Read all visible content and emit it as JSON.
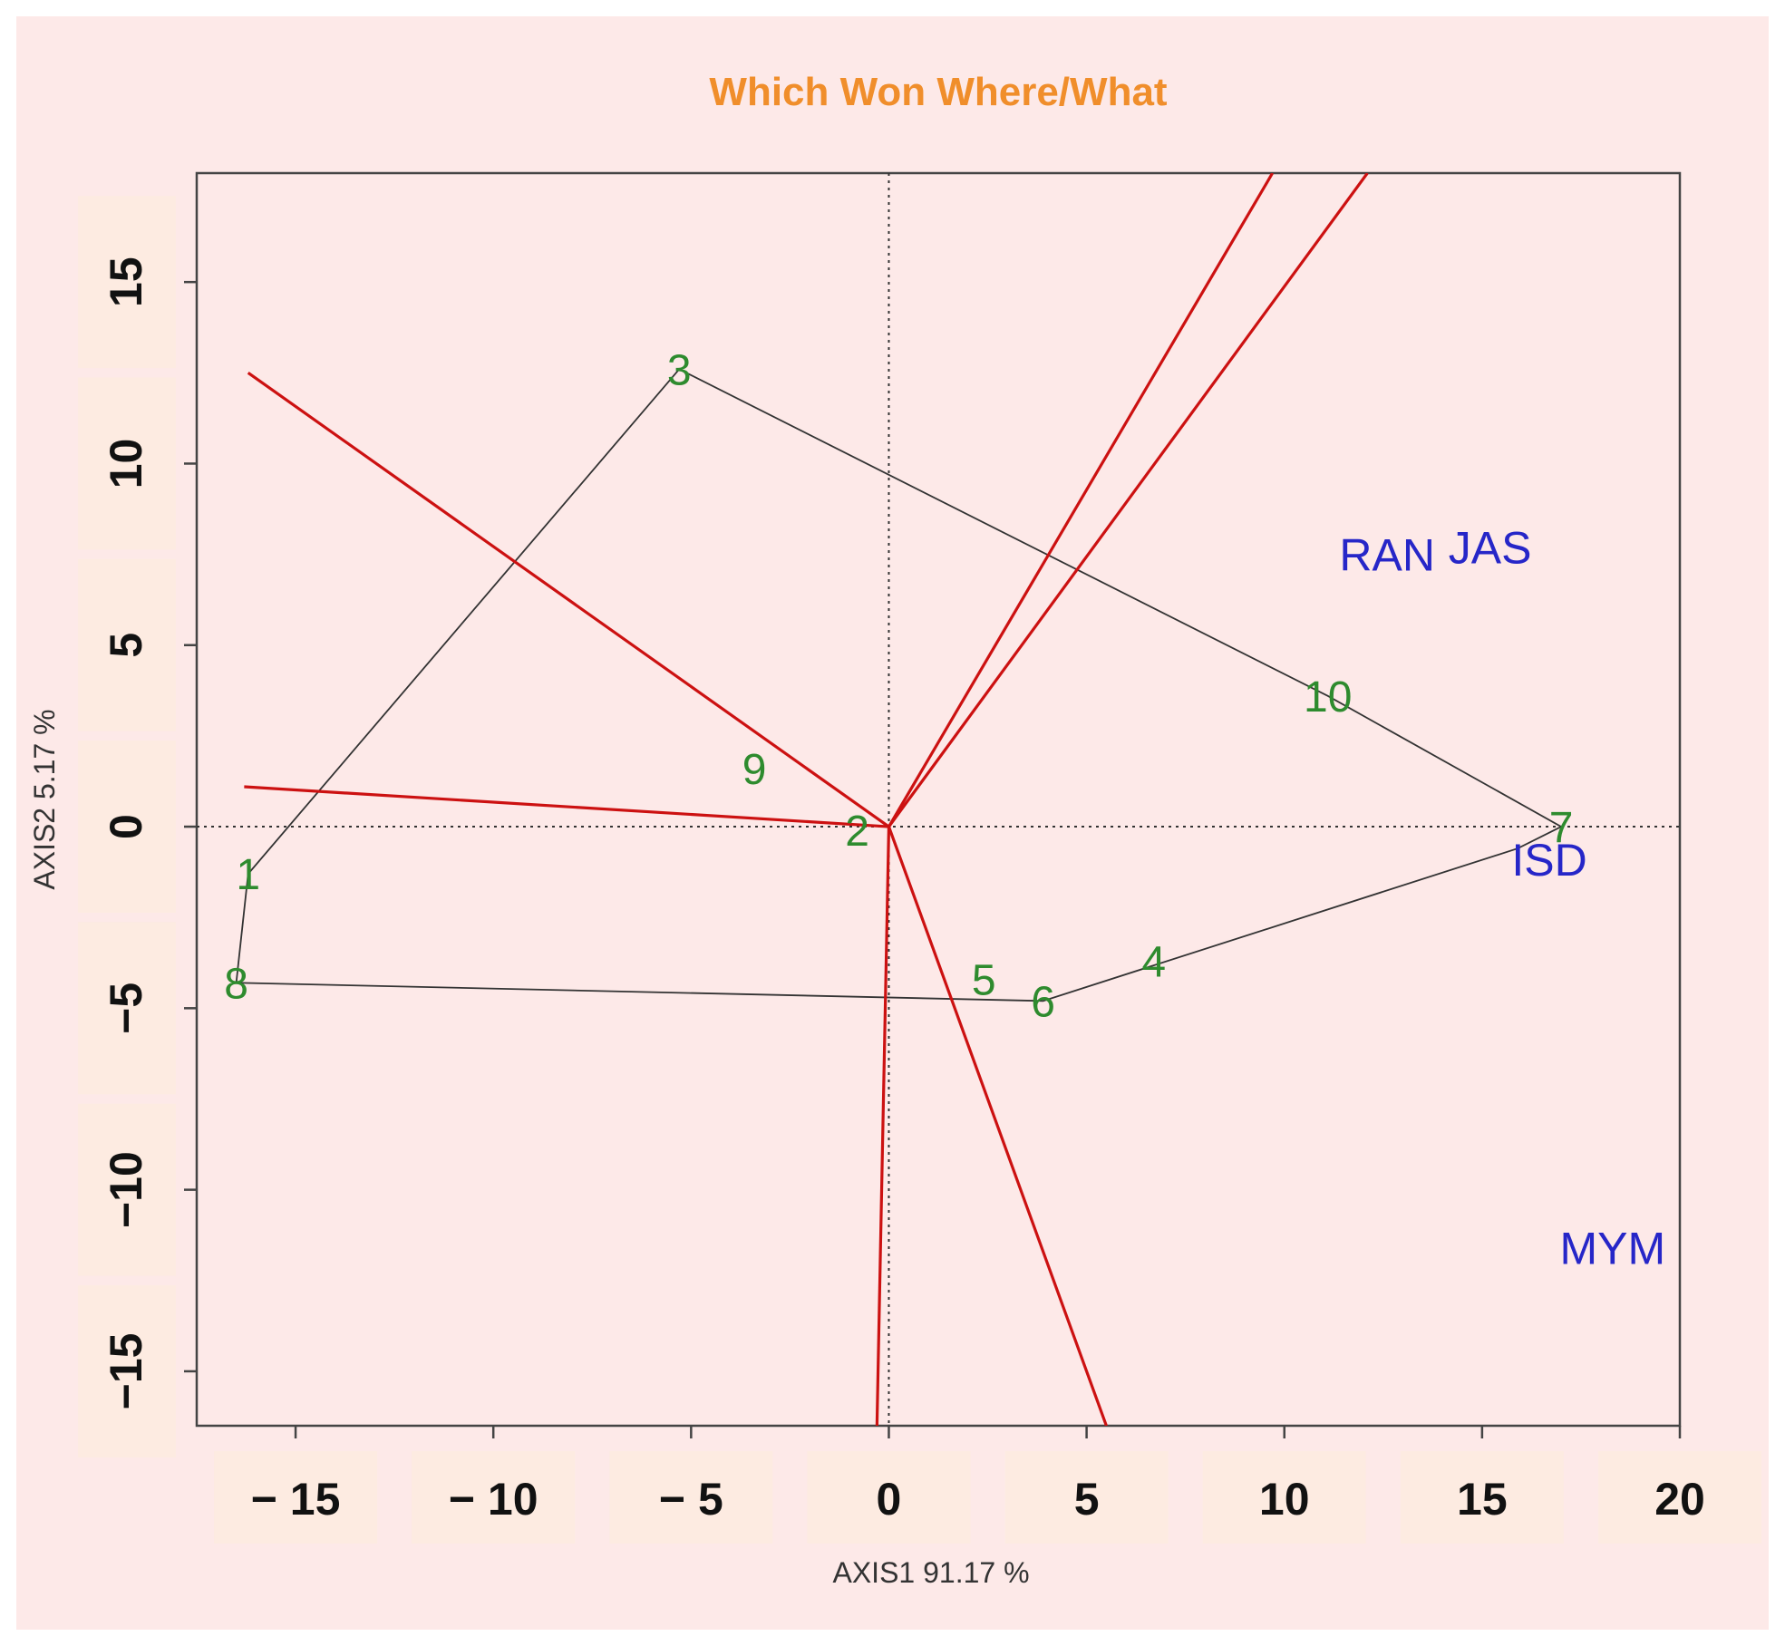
{
  "chart_data": {
    "type": "scatter",
    "title": "Which Won Where/What",
    "xlabel": "AXIS1 91.17 %",
    "ylabel": "AXIS2 5.17 %",
    "xlim": [
      -17.5,
      20
    ],
    "ylim": [
      -16.5,
      18
    ],
    "xticks": [
      -15,
      -10,
      -5,
      0,
      5,
      10,
      15,
      20
    ],
    "yticks": [
      -15,
      -10,
      -5,
      0,
      5,
      10,
      15
    ],
    "xtick_labels": [
      "− 15",
      "− 10",
      "− 5",
      "0",
      "5",
      "10",
      "15",
      "20"
    ],
    "ytick_labels": [
      "−15",
      "−10",
      "−5",
      "0",
      "5",
      "10",
      "15"
    ],
    "grid": false,
    "reference_lines": {
      "x": 0,
      "y": 0,
      "style": "dotted"
    },
    "genotypes": [
      {
        "label": "1",
        "x": -16.2,
        "y": -1.3
      },
      {
        "label": "2",
        "x": -0.8,
        "y": -0.1
      },
      {
        "label": "3",
        "x": -5.3,
        "y": 12.6
      },
      {
        "label": "4",
        "x": 6.7,
        "y": -3.7
      },
      {
        "label": "5",
        "x": 2.4,
        "y": -4.2
      },
      {
        "label": "6",
        "x": 3.9,
        "y": -4.8
      },
      {
        "label": "7",
        "x": 17.0,
        "y": 0.0
      },
      {
        "label": "8",
        "x": -16.5,
        "y": -4.3
      },
      {
        "label": "9",
        "x": -3.4,
        "y": 1.6
      },
      {
        "label": "10",
        "x": 11.1,
        "y": 3.6
      }
    ],
    "environments": [
      {
        "label": "RAN",
        "x": 12.6,
        "y": 7.5
      },
      {
        "label": "JAS",
        "x": 15.2,
        "y": 7.7
      },
      {
        "label": "ISD",
        "x": 16.7,
        "y": -0.9
      },
      {
        "label": "MYM",
        "x": 18.3,
        "y": -11.6
      }
    ],
    "polygon": {
      "vertices": [
        [
          -5.3,
          12.6
        ],
        [
          11.1,
          3.6
        ],
        [
          17.0,
          0.0
        ],
        [
          15.9,
          -0.6
        ],
        [
          3.9,
          -4.8
        ],
        [
          -16.5,
          -4.3
        ],
        [
          -16.2,
          -1.3
        ],
        [
          -5.3,
          12.6
        ]
      ]
    },
    "sector_rays": {
      "origin": [
        0,
        0
      ],
      "endpoints": [
        [
          -16.2,
          12.5
        ],
        [
          -16.3,
          1.1
        ],
        [
          -0.3,
          -16.5
        ],
        [
          5.5,
          -16.5
        ],
        [
          9.7,
          18.0
        ],
        [
          12.1,
          18.0
        ]
      ]
    },
    "colors": {
      "background": "#fde9e8",
      "tick_box": "#fdebe1",
      "title": "#f08e2b",
      "genotype": "#2e8b2e",
      "environment": "#2626c8",
      "sector_ray": "#cc1111",
      "polygon": "#333333"
    }
  }
}
